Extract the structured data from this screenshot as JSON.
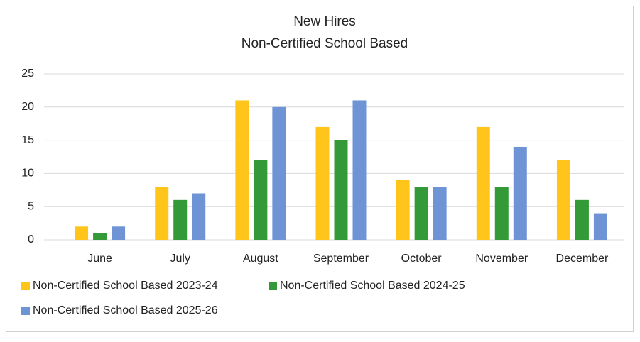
{
  "chart_data": {
    "type": "bar",
    "title": "New Hires",
    "subtitle": "Non-Certified School Based",
    "categories": [
      "June",
      "July",
      "August",
      "September",
      "October",
      "November",
      "December"
    ],
    "series": [
      {
        "name": "Non-Certified School Based 2023-24",
        "color": "#ffc51a",
        "values": [
          2,
          8,
          21,
          17,
          9,
          17,
          12
        ]
      },
      {
        "name": "Non-Certified School Based 2024-25",
        "color": "#349a37",
        "values": [
          1,
          6,
          12,
          15,
          8,
          8,
          6
        ]
      },
      {
        "name": "Non-Certified School Based 2025-26",
        "color": "#6e94d6",
        "values": [
          2,
          7,
          20,
          21,
          8,
          14,
          4
        ]
      }
    ],
    "ylim": [
      0,
      25
    ],
    "yticks": [
      0,
      5,
      10,
      15,
      20,
      25
    ],
    "grid": true,
    "legend": "bottom"
  }
}
